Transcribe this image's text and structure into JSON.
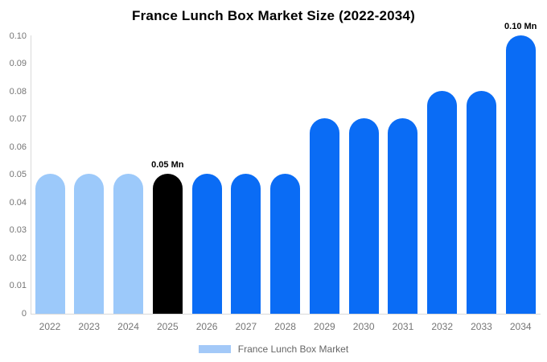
{
  "title": "France Lunch Box Market Size (2022-2034)",
  "legend": {
    "label": "France Lunch Box Market",
    "swatch_color": "#A3C9F8"
  },
  "colors": {
    "historical_bar": "#9CC9FA",
    "highlight_bar": "#000000",
    "forecast_bar": "#0A6CF5",
    "axis_line": "#D9D9D9",
    "tick_text": "#757575",
    "title_text": "#000000",
    "background": "#FFFFFF"
  },
  "chart_data": {
    "type": "bar",
    "title": "France Lunch Box Market Size (2022-2034)",
    "xlabel": "",
    "ylabel": "",
    "unit": "Mn",
    "categories": [
      "2022",
      "2023",
      "2024",
      "2025",
      "2026",
      "2027",
      "2028",
      "2029",
      "2030",
      "2031",
      "2032",
      "2033",
      "2034"
    ],
    "values": [
      0.05,
      0.05,
      0.05,
      0.05,
      0.05,
      0.05,
      0.05,
      0.07,
      0.07,
      0.07,
      0.08,
      0.08,
      0.1
    ],
    "bar_colors": [
      "#9CC9FA",
      "#9CC9FA",
      "#9CC9FA",
      "#000000",
      "#0A6CF5",
      "#0A6CF5",
      "#0A6CF5",
      "#0A6CF5",
      "#0A6CF5",
      "#0A6CF5",
      "#0A6CF5",
      "#0A6CF5",
      "#0A6CF5"
    ],
    "annotations": [
      {
        "category": "2025",
        "text": "0.05 Mn"
      },
      {
        "category": "2034",
        "text": "0.10 Mn"
      }
    ],
    "y_ticks": [
      "0",
      "0.01",
      "0.02",
      "0.03",
      "0.04",
      "0.05",
      "0.06",
      "0.07",
      "0.08",
      "0.09",
      "0.10"
    ],
    "ylim": [
      0,
      0.1
    ],
    "grid": false,
    "legend_position": "bottom",
    "series_name": "France Lunch Box Market"
  }
}
